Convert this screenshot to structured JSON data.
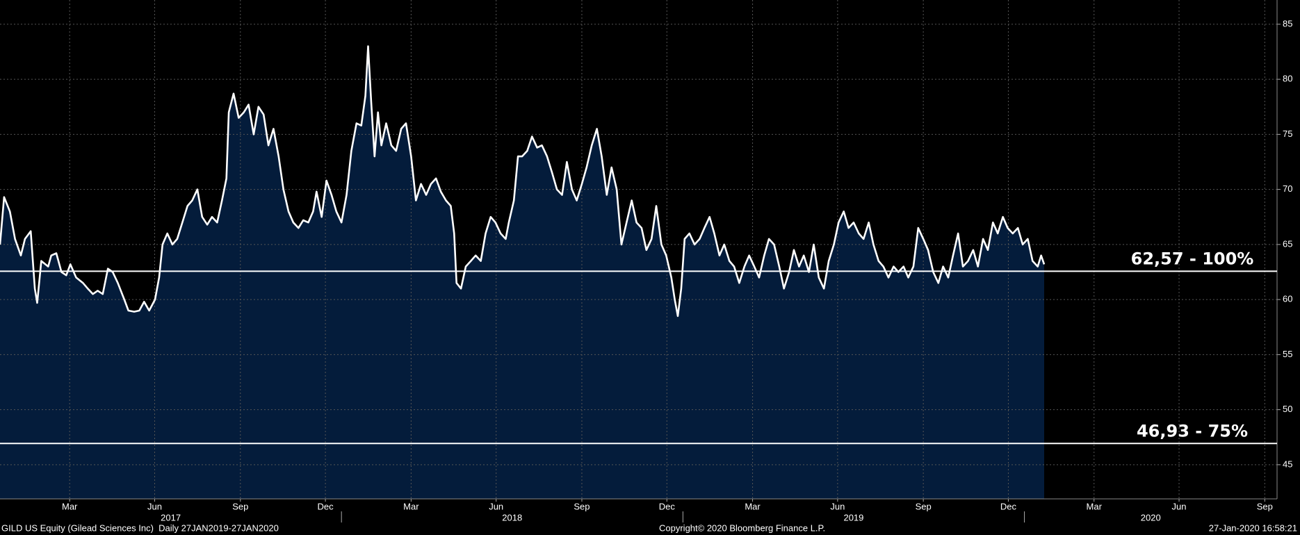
{
  "chart_data": {
    "type": "line",
    "x": [
      2017,
      2017.012,
      2017.029,
      2017.044,
      2017.061,
      2017.073,
      2017.09,
      2017.102,
      2017.109,
      2017.121,
      2017.141,
      2017.15,
      2017.165,
      2017.18,
      2017.194,
      2017.206,
      2017.223,
      2017.243,
      2017.257,
      2017.272,
      2017.286,
      2017.301,
      2017.316,
      2017.33,
      2017.345,
      2017.364,
      2017.376,
      2017.393,
      2017.408,
      2017.422,
      2017.437,
      2017.454,
      2017.466,
      2017.476,
      2017.49,
      2017.505,
      2017.519,
      2017.534,
      2017.549,
      2017.563,
      2017.578,
      2017.592,
      2017.607,
      2017.621,
      2017.636,
      2017.65,
      2017.663,
      2017.67,
      2017.684,
      2017.699,
      2017.714,
      2017.728,
      2017.743,
      2017.757,
      2017.772,
      2017.786,
      2017.801,
      2017.816,
      2017.83,
      2017.845,
      2017.859,
      2017.874,
      2017.888,
      2017.903,
      2017.917,
      2017.927,
      2017.942,
      2017.956,
      2017.971,
      2017.985,
      2018,
      2018.015,
      2018.029,
      2018.044,
      2018.058,
      2018.07,
      2018.078,
      2018.087,
      2018.097,
      2018.107,
      2018.117,
      2018.131,
      2018.146,
      2018.16,
      2018.175,
      2018.189,
      2018.204,
      2018.218,
      2018.233,
      2018.248,
      2018.262,
      2018.277,
      2018.291,
      2018.306,
      2018.32,
      2018.33,
      2018.337,
      2018.35,
      2018.364,
      2018.379,
      2018.393,
      2018.408,
      2018.422,
      2018.437,
      2018.451,
      2018.466,
      2018.481,
      2018.49,
      2018.505,
      2018.517,
      2018.529,
      2018.544,
      2018.558,
      2018.573,
      2018.587,
      2018.602,
      2018.617,
      2018.631,
      2018.646,
      2018.66,
      2018.675,
      2018.689,
      2018.704,
      2018.718,
      2018.733,
      2018.748,
      2018.762,
      2018.777,
      2018.791,
      2018.806,
      2018.82,
      2018.835,
      2018.85,
      2018.864,
      2018.879,
      2018.893,
      2018.908,
      2018.922,
      2018.937,
      2018.951,
      2018.966,
      2018.976,
      2018.985,
      2018.995,
      2019.005,
      2019.019,
      2019.034,
      2019.049,
      2019.063,
      2019.078,
      2019.092,
      2019.107,
      2019.121,
      2019.136,
      2019.15,
      2019.165,
      2019.18,
      2019.194,
      2019.209,
      2019.223,
      2019.238,
      2019.252,
      2019.267,
      2019.282,
      2019.296,
      2019.311,
      2019.325,
      2019.34,
      2019.354,
      2019.369,
      2019.383,
      2019.398,
      2019.413,
      2019.427,
      2019.442,
      2019.456,
      2019.471,
      2019.485,
      2019.5,
      2019.515,
      2019.529,
      2019.544,
      2019.558,
      2019.573,
      2019.587,
      2019.602,
      2019.617,
      2019.631,
      2019.646,
      2019.66,
      2019.675,
      2019.689,
      2019.704,
      2019.718,
      2019.733,
      2019.748,
      2019.762,
      2019.777,
      2019.791,
      2019.806,
      2019.82,
      2019.835,
      2019.85,
      2019.864,
      2019.879,
      2019.893,
      2019.908,
      2019.922,
      2019.937,
      2019.951,
      2019.966,
      2019.981,
      2019.995,
      2020.01,
      2020.024,
      2020.039,
      2020.049,
      2020.058
    ],
    "values": [
      65,
      69.3,
      68,
      65.5,
      64,
      65.5,
      66.2,
      61,
      59.7,
      63.5,
      63,
      64,
      64.2,
      62.5,
      62.2,
      63.2,
      62,
      61.5,
      61,
      60.5,
      60.8,
      60.5,
      62.8,
      62.5,
      61.5,
      60,
      59,
      58.9,
      59,
      59.8,
      59,
      60,
      62,
      65,
      66,
      65,
      65.5,
      67,
      68.5,
      69,
      70,
      67.5,
      66.8,
      67.5,
      67,
      69,
      71,
      77,
      78.7,
      76.5,
      77,
      77.7,
      75,
      77.5,
      76.8,
      74,
      75.5,
      73,
      70,
      68,
      67,
      66.5,
      67.2,
      67,
      68,
      69.8,
      67.5,
      70.8,
      69.5,
      68,
      67,
      69.5,
      73.5,
      76,
      75.8,
      78.5,
      83,
      78,
      73,
      77,
      74,
      76,
      74,
      73.5,
      75.5,
      76,
      73,
      69,
      70.5,
      69.5,
      70.5,
      71,
      69.8,
      69,
      68.5,
      66,
      61.5,
      61,
      63,
      63.5,
      64,
      63.5,
      66,
      67.5,
      67,
      66,
      65.5,
      67,
      69,
      73,
      73,
      73.5,
      74.8,
      73.8,
      74,
      73,
      71.5,
      70,
      69.5,
      72.5,
      70,
      69,
      70.5,
      72,
      74,
      75.5,
      73,
      69.5,
      72,
      70,
      65,
      67,
      69,
      67,
      66.5,
      64.5,
      65.5,
      68.5,
      65,
      64,
      62,
      60,
      58.5,
      61,
      65.5,
      66,
      65,
      65.5,
      66.5,
      67.5,
      66,
      64,
      65,
      63.5,
      63,
      61.5,
      63,
      64,
      63,
      62,
      64,
      65.5,
      65,
      63,
      61,
      62.5,
      64.5,
      63,
      64,
      62.5,
      65,
      62,
      61,
      63.5,
      65,
      67,
      68,
      66.5,
      67,
      66,
      65.5,
      67,
      65,
      63.5,
      63,
      62,
      63,
      62.5,
      63,
      62,
      63,
      66.5,
      65.5,
      64.5,
      62.5,
      61.5,
      63,
      62,
      64,
      66,
      63,
      63.5,
      64.5,
      63,
      65.5,
      64.5,
      67,
      66,
      67.5,
      66.5,
      66,
      66.5,
      65,
      65.5,
      63.5,
      63,
      64,
      63.2
    ],
    "color": "#ffffff",
    "area_color": "#041c3b",
    "xlim": [
      2017,
      2020.74
    ],
    "xticks": [
      {
        "value": 2017.204,
        "label": "Mar"
      },
      {
        "value": 2017.453,
        "label": "Jun"
      },
      {
        "value": 2017.704,
        "label": "Sep"
      },
      {
        "value": 2017.953,
        "label": "Dec"
      },
      {
        "value": 2018.204,
        "label": "Mar"
      },
      {
        "value": 2018.453,
        "label": "Jun"
      },
      {
        "value": 2018.704,
        "label": "Sep"
      },
      {
        "value": 2018.953,
        "label": "Dec"
      },
      {
        "value": 2019.204,
        "label": "Mar"
      },
      {
        "value": 2019.453,
        "label": "Jun"
      },
      {
        "value": 2019.704,
        "label": "Sep"
      },
      {
        "value": 2019.953,
        "label": "Dec"
      },
      {
        "value": 2020.204,
        "label": "Mar"
      },
      {
        "value": 2020.453,
        "label": "Jun"
      },
      {
        "value": 2020.704,
        "label": "Sep"
      }
    ],
    "year_labels": [
      {
        "value": 2017.5,
        "label": "2017"
      },
      {
        "value": 2018.5,
        "label": "2018"
      },
      {
        "value": 2019.5,
        "label": "2019"
      },
      {
        "value": 2020.37,
        "label": "2020"
      }
    ],
    "year_ticks": [
      2018,
      2019,
      2020
    ],
    "ylim": [
      41.9,
      87.2
    ],
    "yticks": [
      45,
      50,
      55,
      60,
      65,
      70,
      75,
      80,
      85
    ],
    "grid": true,
    "annotations": [
      {
        "value": 62.57,
        "label": "62,57 - 100%"
      },
      {
        "value": 46.93,
        "label": "46,93 - 75%"
      }
    ]
  },
  "footer": {
    "left": "GILD US Equity (Gilead Sciences Inc)  Daily 27JAN2019-27JAN2020",
    "center": "Copyright© 2020 Bloomberg Finance L.P.",
    "right": "27-Jan-2020 16:58:21"
  }
}
